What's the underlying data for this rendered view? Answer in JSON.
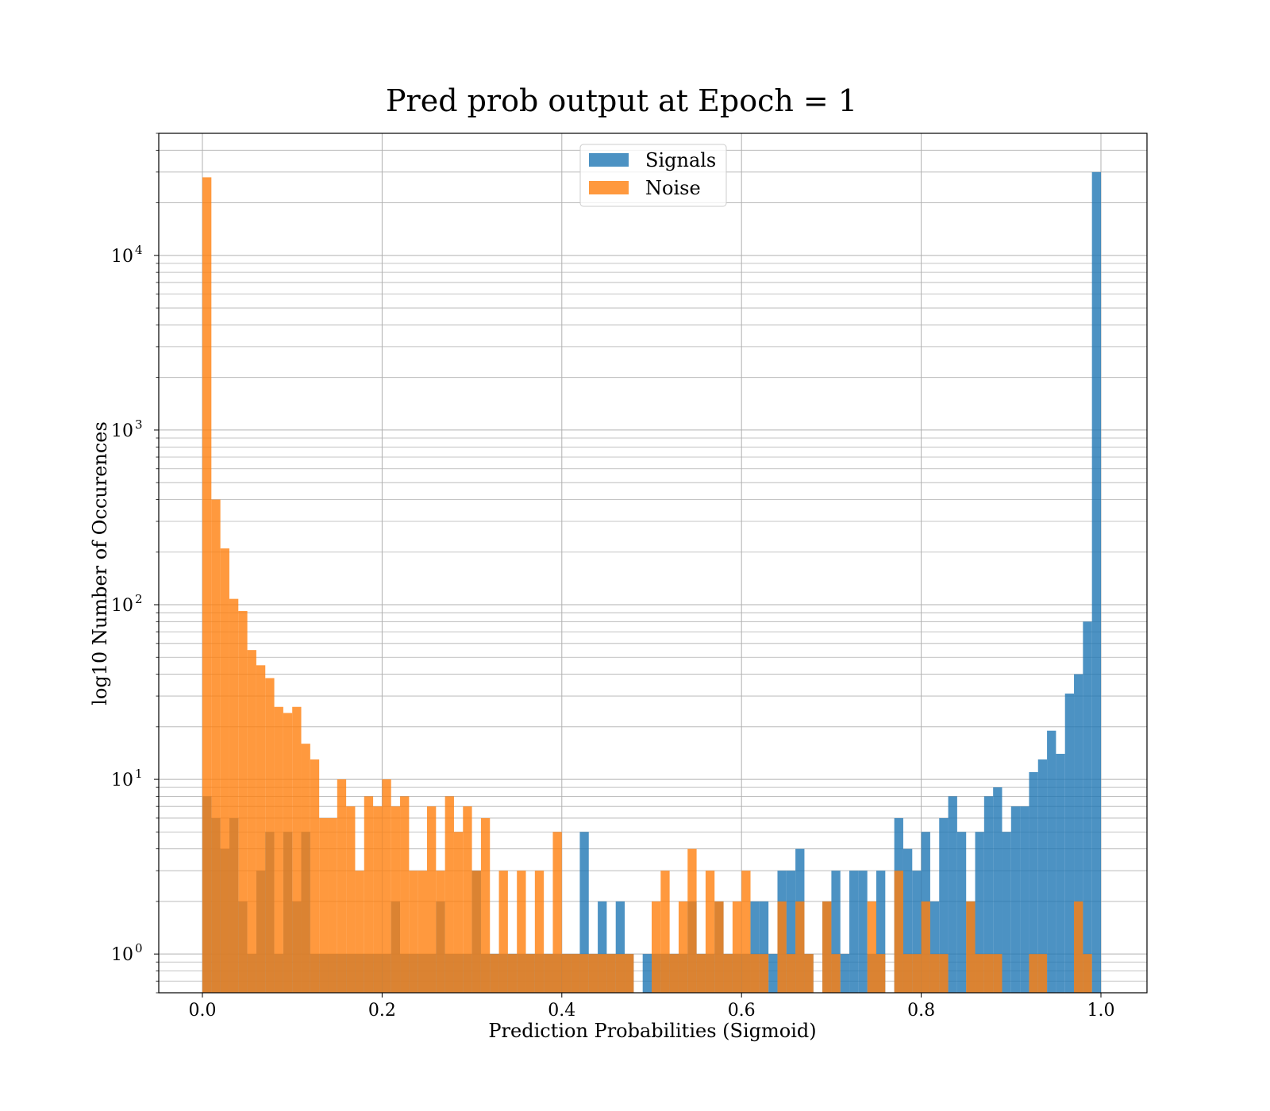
{
  "chart_data": {
    "type": "bar",
    "title": "Pred prob output at Epoch = 1",
    "xlabel": "Prediction Probabilities (Sigmoid)",
    "ylabel": "log10 Number of Occurences",
    "xlim": [
      -0.05,
      1.05
    ],
    "ylim": [
      0.6,
      50000
    ],
    "yscale": "log",
    "grid": true,
    "legend_position": "top-center",
    "bins": {
      "start": 0.0,
      "end": 1.0,
      "count": 100
    },
    "x_ticks": [
      0.0,
      0.2,
      0.4,
      0.6,
      0.8,
      1.0
    ],
    "x_tick_labels": [
      "0.0",
      "0.2",
      "0.4",
      "0.6",
      "0.8",
      "1.0"
    ],
    "y_ticks": [
      1,
      10,
      100,
      1000,
      10000
    ],
    "y_tick_labels": [
      {
        "base": "10",
        "exp": "0"
      },
      {
        "base": "10",
        "exp": "1"
      },
      {
        "base": "10",
        "exp": "2"
      },
      {
        "base": "10",
        "exp": "3"
      },
      {
        "base": "10",
        "exp": "4"
      }
    ],
    "series": [
      {
        "name": "Signals",
        "color": "#1f77b4",
        "counts": [
          8,
          6,
          4,
          6,
          2,
          1,
          3,
          5,
          1,
          5,
          2,
          5,
          1,
          1,
          1,
          1,
          1,
          1,
          1,
          1,
          1,
          2,
          1,
          1,
          1,
          1,
          2,
          1,
          1,
          1,
          3,
          1,
          1,
          1,
          1,
          1,
          1,
          1,
          1,
          1,
          1,
          1,
          5,
          1,
          2,
          1,
          2,
          1,
          0,
          1,
          1,
          1,
          1,
          1,
          2,
          1,
          1,
          2,
          1,
          1,
          1,
          2,
          2,
          1,
          3,
          3,
          4,
          1,
          0,
          2,
          3,
          1,
          3,
          3,
          1,
          3,
          0,
          6,
          4,
          3,
          5,
          2,
          6,
          8,
          5,
          2,
          5,
          8,
          9,
          5,
          7,
          7,
          11,
          13,
          19,
          14,
          31,
          40,
          80,
          30000
        ]
      },
      {
        "name": "Noise",
        "color": "#ff7f0e",
        "counts": [
          28000,
          400,
          210,
          108,
          92,
          55,
          45,
          38,
          26,
          24,
          26,
          16,
          13,
          6,
          6,
          10,
          7,
          3,
          8,
          7,
          10,
          7,
          8,
          3,
          3,
          7,
          3,
          8,
          5,
          7,
          3,
          6,
          1,
          3,
          1,
          3,
          1,
          3,
          1,
          5,
          1,
          1,
          1,
          1,
          1,
          1,
          1,
          1,
          0,
          0,
          2,
          3,
          1,
          2,
          4,
          1,
          3,
          2,
          1,
          2,
          3,
          1,
          1,
          0,
          2,
          1,
          2,
          1,
          0,
          2,
          1,
          0,
          0,
          0,
          2,
          1,
          0,
          3,
          1,
          1,
          2,
          1,
          1,
          0,
          0,
          2,
          1,
          1,
          1,
          0,
          0,
          0,
          1,
          1,
          0,
          0,
          0,
          2,
          1,
          0
        ]
      }
    ]
  }
}
